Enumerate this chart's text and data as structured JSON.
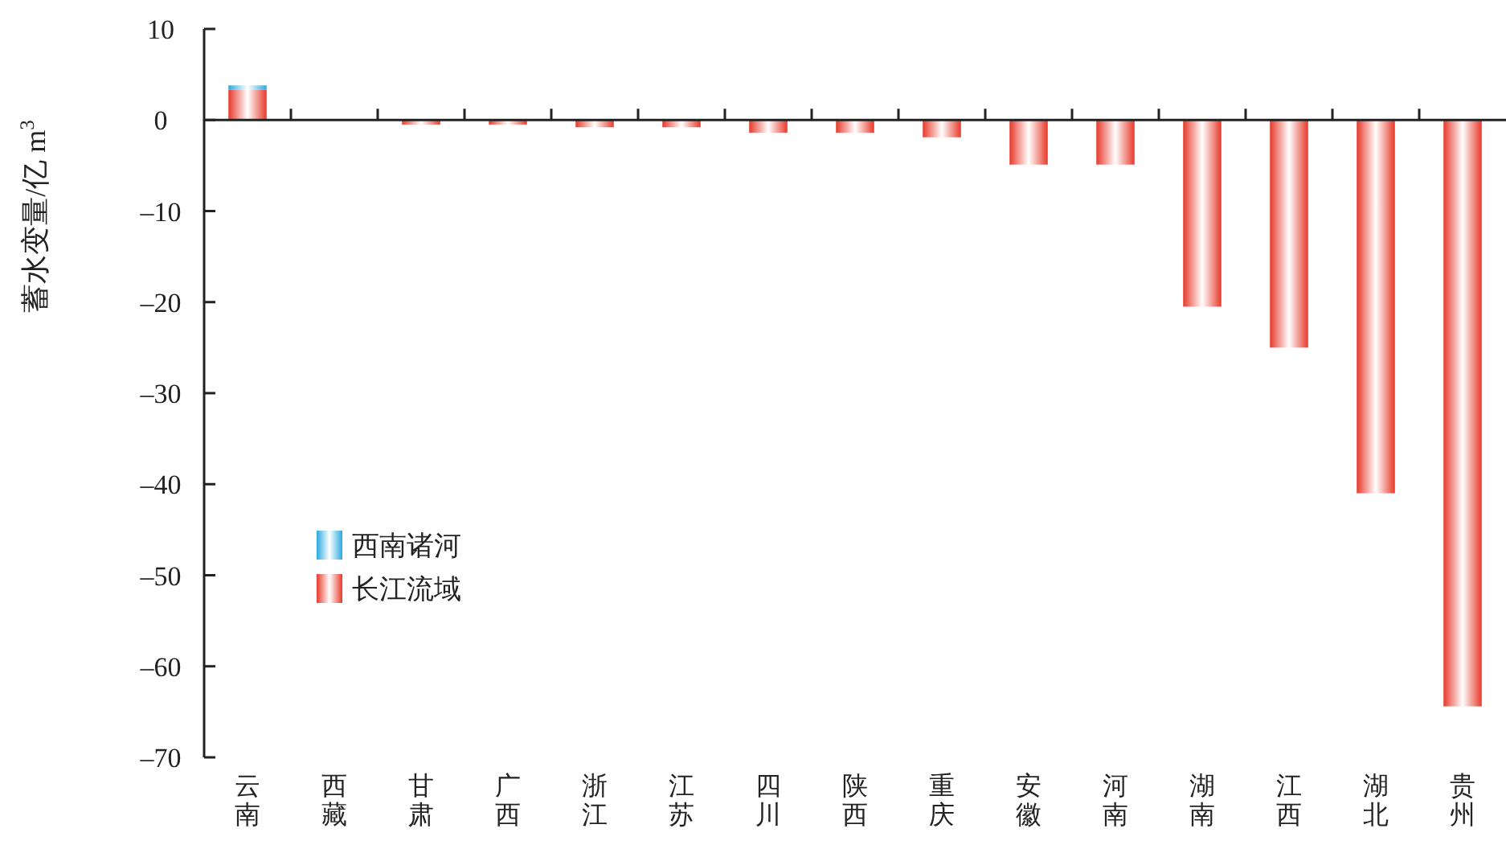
{
  "chart_data": {
    "type": "bar",
    "stacked": true,
    "ylabel": "蓄水变量/亿 m$^{3}$",
    "categories": [
      "云南",
      "西藏",
      "甘肃",
      "广西",
      "浙江",
      "江苏",
      "四川",
      "陕西",
      "重庆",
      "安徽",
      "河南",
      "湖南",
      "江西",
      "湖北",
      "贵州"
    ],
    "series": [
      {
        "name": "长江流域",
        "color": "#e8392a",
        "values": [
          3.3,
          0,
          -0.5,
          -0.5,
          -0.8,
          -0.8,
          -1.4,
          -1.4,
          -1.9,
          -4.9,
          -4.9,
          -20.5,
          -25,
          -41,
          -64.4
        ]
      },
      {
        "name": "西南诸河",
        "color": "#29a9e0",
        "values": [
          0.5,
          null,
          null,
          null,
          null,
          null,
          null,
          null,
          null,
          null,
          null,
          null,
          null,
          null,
          null
        ]
      }
    ],
    "ylim": [
      -70,
      10
    ],
    "yticks": [
      {
        "value": -70,
        "label": "–70"
      },
      {
        "value": -60,
        "label": "–60"
      },
      {
        "value": -50,
        "label": "–50"
      },
      {
        "value": -40,
        "label": "–40"
      },
      {
        "value": -30,
        "label": "–30"
      },
      {
        "value": -20,
        "label": "–20"
      },
      {
        "value": -10,
        "label": "–10"
      },
      0,
      10
    ],
    "legend": "left"
  }
}
